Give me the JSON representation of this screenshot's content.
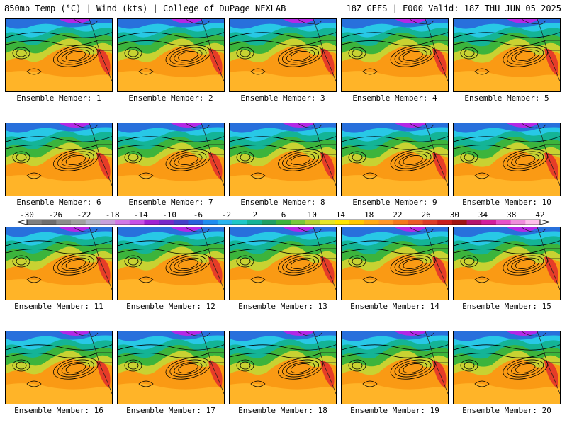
{
  "header": {
    "left_title": "850mb Temp (°C) | Wind (kts) | College of DuPage NEXLAB",
    "right_title": "18Z GEFS | F000 Valid: 18Z THU JUN 05 2025"
  },
  "members": [
    {
      "label": "Ensemble Member: 1"
    },
    {
      "label": "Ensemble Member: 2"
    },
    {
      "label": "Ensemble Member: 3"
    },
    {
      "label": "Ensemble Member: 4"
    },
    {
      "label": "Ensemble Member: 5"
    },
    {
      "label": "Ensemble Member: 6"
    },
    {
      "label": "Ensemble Member: 7"
    },
    {
      "label": "Ensemble Member: 8"
    },
    {
      "label": "Ensemble Member: 9"
    },
    {
      "label": "Ensemble Member: 10"
    },
    {
      "label": "Ensemble Member: 11"
    },
    {
      "label": "Ensemble Member: 12"
    },
    {
      "label": "Ensemble Member: 13"
    },
    {
      "label": "Ensemble Member: 14"
    },
    {
      "label": "Ensemble Member: 15"
    },
    {
      "label": "Ensemble Member: 16"
    },
    {
      "label": "Ensemble Member: 17"
    },
    {
      "label": "Ensemble Member: 18"
    },
    {
      "label": "Ensemble Member: 19"
    },
    {
      "label": "Ensemble Member: 20"
    }
  ],
  "colorbar": {
    "tick_labels": [
      "-30",
      "-26",
      "-22",
      "-18",
      "-14",
      "-10",
      "-6",
      "-2",
      "2",
      "6",
      "10",
      "14",
      "18",
      "22",
      "26",
      "30",
      "34",
      "38",
      "42"
    ],
    "colors": [
      "#7f7f7f",
      "#6e6e6e",
      "#8c8c8c",
      "#a0a0a0",
      "#b4b4c8",
      "#c8a0dc",
      "#d278e6",
      "#c850e6",
      "#a020d2",
      "#7828c8",
      "#4640c8",
      "#2860dc",
      "#1e8cf0",
      "#28b4f0",
      "#1ec8c8",
      "#14b496",
      "#1ea064",
      "#3cb43c",
      "#78c83c",
      "#b4d232",
      "#e6e628",
      "#ffe600",
      "#ffc800",
      "#ffaa14",
      "#ff9628",
      "#f5781e",
      "#eb5a28",
      "#dc3c28",
      "#c81e1e",
      "#a01414",
      "#b4146e",
      "#d21e9b",
      "#e650c8",
      "#f08cdc",
      "#ffbeeb"
    ]
  },
  "map_colors": {
    "warm_base": "#fa9a14",
    "warm_light": "#ffb428",
    "yellow_green": "#c8d232",
    "green": "#3cb43c",
    "teal": "#14b496",
    "cyan": "#28c8e6",
    "blue": "#2870dc",
    "purple": "#b428e6",
    "red": "#e63c28",
    "contour": "#000000"
  }
}
